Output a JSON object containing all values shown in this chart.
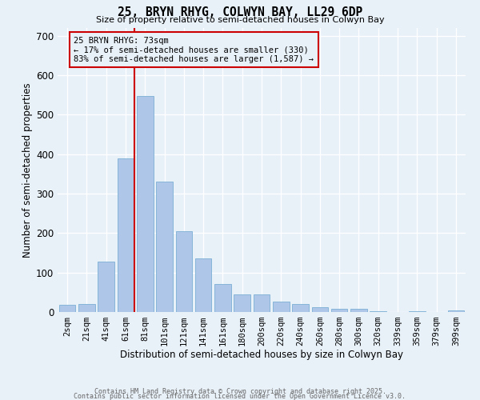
{
  "title": "25, BRYN RHYG, COLWYN BAY, LL29 6DP",
  "subtitle": "Size of property relative to semi-detached houses in Colwyn Bay",
  "xlabel": "Distribution of semi-detached houses by size in Colwyn Bay",
  "ylabel": "Number of semi-detached properties",
  "categories": [
    "2sqm",
    "21sqm",
    "41sqm",
    "61sqm",
    "81sqm",
    "101sqm",
    "121sqm",
    "141sqm",
    "161sqm",
    "180sqm",
    "200sqm",
    "220sqm",
    "240sqm",
    "260sqm",
    "280sqm",
    "300sqm",
    "320sqm",
    "339sqm",
    "359sqm",
    "379sqm",
    "399sqm"
  ],
  "values": [
    18,
    20,
    128,
    390,
    548,
    330,
    205,
    135,
    72,
    44,
    44,
    26,
    20,
    13,
    9,
    8,
    2,
    0,
    2,
    0,
    5
  ],
  "bar_color": "#aec6e8",
  "bar_edge_color": "#7aafd4",
  "vline_color": "#cc0000",
  "vline_pos": 3.45,
  "annotation_text": "25 BRYN RHYG: 73sqm\n← 17% of semi-detached houses are smaller (330)\n83% of semi-detached houses are larger (1,587) →",
  "annotation_box_color": "#cc0000",
  "background_color": "#e8f0f8",
  "grid_color": "#ffffff",
  "footer_line1": "Contains HM Land Registry data © Crown copyright and database right 2025.",
  "footer_line2": "Contains public sector information licensed under the Open Government Licence v3.0.",
  "ylim": [
    0,
    720
  ],
  "yticks": [
    0,
    100,
    200,
    300,
    400,
    500,
    600,
    700
  ]
}
